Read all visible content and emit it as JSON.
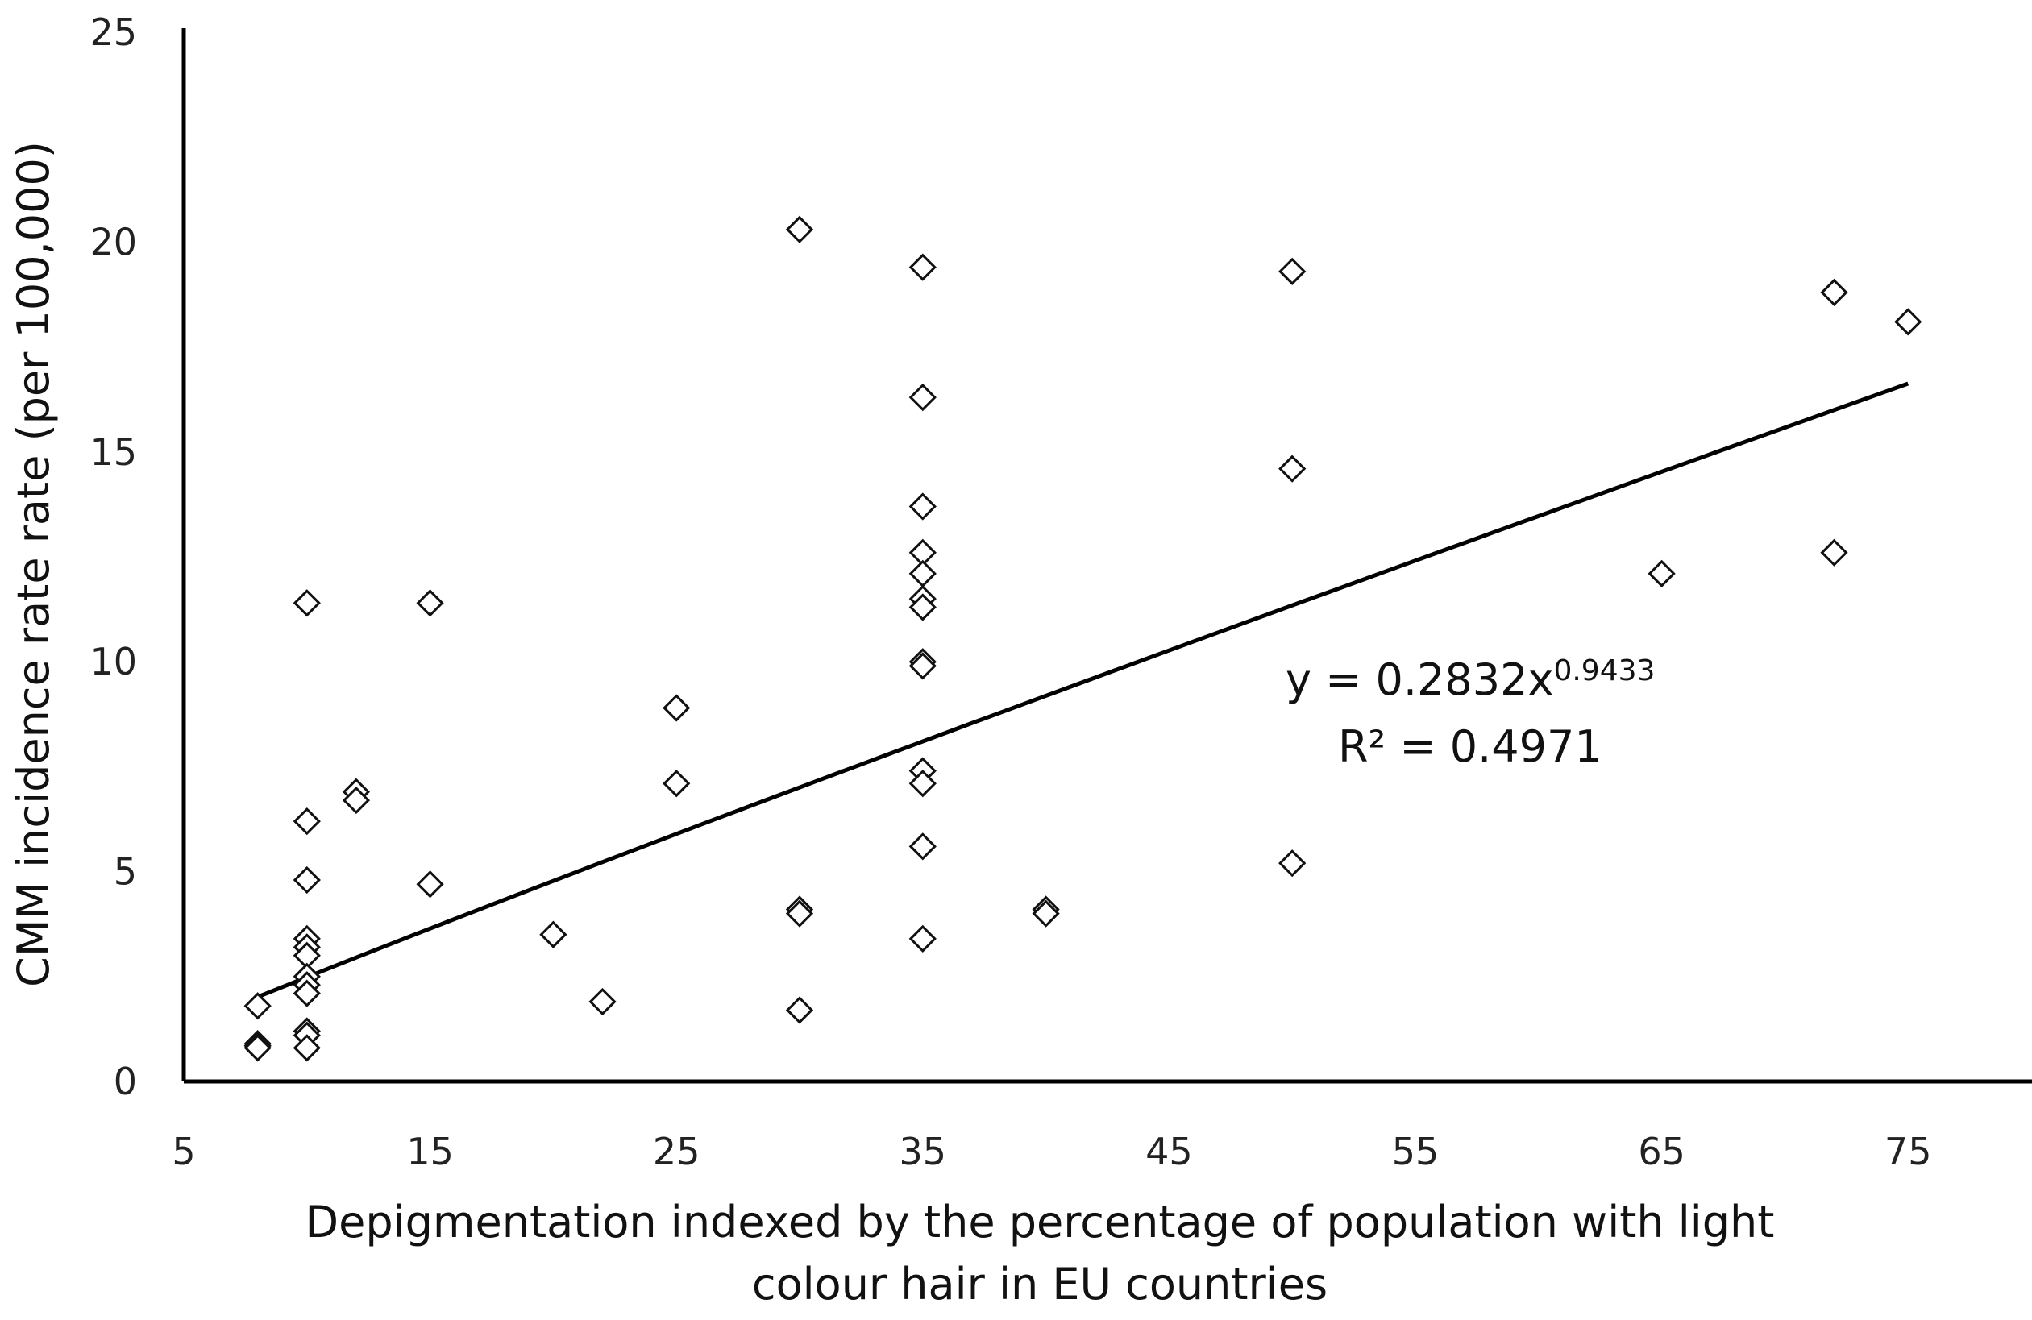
{
  "chart_data": {
    "type": "scatter",
    "title": "",
    "xlabel_line1": "Depigmentation indexed by the percentage of population with light",
    "xlabel_line2": "colour hair in EU countries",
    "ylabel": "CMM incidence rate rate  (per 100,000)",
    "xlim": [
      5,
      80
    ],
    "ylim": [
      0,
      25
    ],
    "x_ticks": [
      5,
      15,
      25,
      35,
      45,
      55,
      65,
      75
    ],
    "y_ticks": [
      0,
      5,
      10,
      15,
      20,
      25
    ],
    "grid": false,
    "points": [
      [
        8,
        1.8
      ],
      [
        8,
        0.9
      ],
      [
        8,
        0.85
      ],
      [
        8,
        0.8
      ],
      [
        10,
        11.4
      ],
      [
        10,
        6.2
      ],
      [
        10,
        4.8
      ],
      [
        10,
        3.4
      ],
      [
        10,
        3.2
      ],
      [
        10,
        3.0
      ],
      [
        10,
        2.5
      ],
      [
        10,
        2.3
      ],
      [
        10,
        2.1
      ],
      [
        10,
        1.2
      ],
      [
        10,
        1.1
      ],
      [
        10,
        0.8
      ],
      [
        12,
        6.9
      ],
      [
        12,
        6.7
      ],
      [
        15,
        11.4
      ],
      [
        15,
        4.7
      ],
      [
        20,
        3.5
      ],
      [
        22,
        1.9
      ],
      [
        25,
        8.9
      ],
      [
        25,
        7.1
      ],
      [
        30,
        20.3
      ],
      [
        30,
        4.1
      ],
      [
        30,
        4.0
      ],
      [
        30,
        1.7
      ],
      [
        35,
        19.4
      ],
      [
        35,
        16.3
      ],
      [
        35,
        13.7
      ],
      [
        35,
        12.6
      ],
      [
        35,
        12.1
      ],
      [
        35,
        11.5
      ],
      [
        35,
        11.3
      ],
      [
        35,
        10.0
      ],
      [
        35,
        9.9
      ],
      [
        35,
        7.4
      ],
      [
        35,
        7.1
      ],
      [
        35,
        5.6
      ],
      [
        35,
        3.4
      ],
      [
        40,
        4.1
      ],
      [
        40,
        4.0
      ],
      [
        50,
        19.3
      ],
      [
        50,
        14.6
      ],
      [
        50,
        5.2
      ],
      [
        65,
        12.1
      ],
      [
        72,
        18.8
      ],
      [
        72,
        12.6
      ],
      [
        75,
        18.1
      ]
    ],
    "trendline": {
      "type": "power",
      "coefficient": 0.2832,
      "exponent": 0.9433,
      "x_range": [
        8,
        75
      ],
      "equation_prefix": "y = 0.2832x",
      "equation_exponent": "0.9433",
      "r_squared_text": "R² = 0.4971"
    }
  }
}
